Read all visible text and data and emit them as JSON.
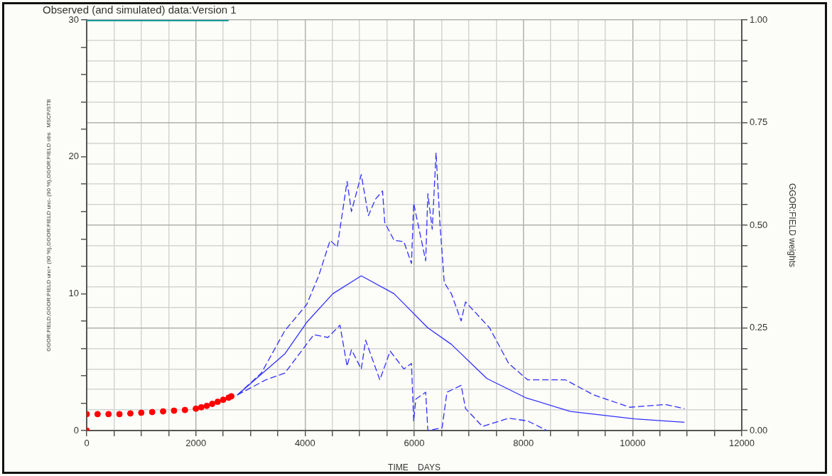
{
  "chart_data": {
    "type": "line",
    "title": "Observed (and simulated) data:Version 1",
    "xlabel": "TIME    DAYS",
    "ylabel": "GGOR:FIELD,GGOR:FIELD unc+ (90 %),GGOR:FIELD unc- (90 %),GGOR:FIELD obs   MSCF/STB",
    "y2label": "GGOR:FIELD weights",
    "xlim": [
      0,
      12000
    ],
    "xticks": [
      0,
      {
        "value": 500,
        "label": null
      },
      {
        "value": 1000,
        "label": null
      },
      {
        "value": 1500,
        "label": null
      },
      2000,
      {
        "value": 2500,
        "label": null
      },
      {
        "value": 3000,
        "label": null
      },
      {
        "value": 3500,
        "label": null
      },
      4000,
      {
        "value": 4500,
        "label": null
      },
      {
        "value": 5000,
        "label": null
      },
      {
        "value": 5500,
        "label": null
      },
      6000,
      {
        "value": 6500,
        "label": null
      },
      {
        "value": 7000,
        "label": null
      },
      {
        "value": 7500,
        "label": null
      },
      8000,
      {
        "value": 8500,
        "label": null
      },
      {
        "value": 9000,
        "label": null
      },
      {
        "value": 9500,
        "label": null
      },
      10000,
      {
        "value": 10500,
        "label": null
      },
      {
        "value": 11000,
        "label": null
      },
      {
        "value": 11500,
        "label": null
      },
      12000
    ],
    "ylim": [
      0,
      30
    ],
    "yticks": [
      0,
      {
        "value": 2,
        "label": null
      },
      {
        "value": 4,
        "label": null
      },
      {
        "value": 6,
        "label": null
      },
      {
        "value": 8,
        "label": null
      },
      10,
      {
        "value": 12,
        "label": null
      },
      {
        "value": 14,
        "label": null
      },
      {
        "value": 16,
        "label": null
      },
      {
        "value": 18,
        "label": null
      },
      20,
      {
        "value": 22,
        "label": null
      },
      {
        "value": 24,
        "label": null
      },
      {
        "value": 26,
        "label": null
      },
      {
        "value": 28,
        "label": null
      },
      30
    ],
    "y2lim": [
      0,
      1
    ],
    "y2ticks": [
      {
        "value": 0,
        "label": "0.00"
      },
      {
        "value": 0.05,
        "label": null
      },
      {
        "value": 0.1,
        "label": null
      },
      {
        "value": 0.15,
        "label": null
      },
      {
        "value": 0.2,
        "label": null
      },
      {
        "value": 0.25,
        "label": "0.25"
      },
      {
        "value": 0.3,
        "label": null
      },
      {
        "value": 0.35,
        "label": null
      },
      {
        "value": 0.4,
        "label": null
      },
      {
        "value": 0.45,
        "label": null
      },
      {
        "value": 0.5,
        "label": "0.50"
      },
      {
        "value": 0.55,
        "label": null
      },
      {
        "value": 0.6,
        "label": null
      },
      {
        "value": 0.65,
        "label": null
      },
      {
        "value": 0.7,
        "label": null
      },
      {
        "value": 0.75,
        "label": "0.75"
      },
      {
        "value": 0.8,
        "label": null
      },
      {
        "value": 0.85,
        "label": null
      },
      {
        "value": 0.9,
        "label": null
      },
      {
        "value": 0.95,
        "label": null
      },
      {
        "value": 1,
        "label": "1.00"
      }
    ],
    "grid": true,
    "series": [
      {
        "line_style": "solid",
        "marker": "none",
        "color": "#3030ff",
        "x": [
          2760,
          3630,
          4030,
          4510,
          5030,
          5630,
          6250,
          6680,
          7330,
          8040,
          8860,
          10040,
          10950
        ],
        "values": [
          2.6,
          5.6,
          7.9,
          10.0,
          11.3,
          10.0,
          7.5,
          6.3,
          3.8,
          2.4,
          1.4,
          0.85,
          0.6
        ]
      },
      {
        "line_style": "dashed",
        "marker": "none",
        "color": "#3030ff",
        "x": [
          2760,
          3200,
          3630,
          4030,
          4250,
          4460,
          4590,
          4770,
          4850,
          5030,
          5160,
          5290,
          5420,
          5460,
          5630,
          5810,
          5950,
          5990,
          6210,
          6250,
          6330,
          6400,
          6470,
          6550,
          6680,
          6860,
          6940,
          7380,
          7730,
          8080,
          8770,
          9290,
          9950,
          10600,
          10950
        ],
        "values": [
          2.6,
          4.2,
          7.3,
          9.2,
          11.3,
          13.9,
          13.4,
          18.2,
          16.0,
          18.7,
          15.7,
          16.9,
          17.5,
          15.2,
          13.9,
          13.8,
          12.2,
          16.6,
          12.4,
          17.3,
          14.7,
          20.3,
          15.2,
          10.8,
          10.0,
          8.0,
          9.4,
          7.5,
          4.9,
          3.7,
          3.7,
          2.6,
          1.7,
          1.9,
          1.6
        ]
      },
      {
        "line_style": "dashed",
        "marker": "none",
        "color": "#3030ff",
        "x": [
          2760,
          3280,
          3630,
          3990,
          4160,
          4420,
          4640,
          4770,
          4850,
          5030,
          5110,
          5370,
          5560,
          5810,
          5950,
          5990,
          6030,
          6210,
          6250,
          6510,
          6600,
          6860,
          6940,
          7250,
          7730,
          8080,
          8430
        ],
        "values": [
          2.6,
          3.7,
          4.2,
          6.1,
          7.0,
          6.8,
          7.7,
          4.7,
          5.9,
          4.5,
          6.6,
          3.7,
          5.8,
          4.5,
          4.9,
          0.7,
          2.3,
          2.8,
          0,
          0.2,
          2.8,
          3.3,
          1.6,
          0.3,
          0.9,
          0.7,
          0
        ]
      },
      {
        "type": "scatter",
        "marker": "circle",
        "color": "#ff0000",
        "x": [
          0,
          0,
          200,
          400,
          600,
          800,
          1000,
          1200,
          1400,
          1600,
          1800,
          2000,
          2100,
          2200,
          2300,
          2400,
          2500,
          2600,
          2650
        ],
        "values": [
          0,
          1.2,
          1.2,
          1.2,
          1.2,
          1.25,
          1.3,
          1.35,
          1.4,
          1.45,
          1.5,
          1.6,
          1.7,
          1.8,
          1.95,
          2.1,
          2.25,
          2.4,
          2.5
        ]
      },
      {
        "line_style": "solid",
        "marker": "none",
        "color": "#1a9a9a",
        "axis": "y2",
        "x": [
          0,
          2600
        ],
        "values": [
          1,
          1
        ]
      }
    ]
  }
}
